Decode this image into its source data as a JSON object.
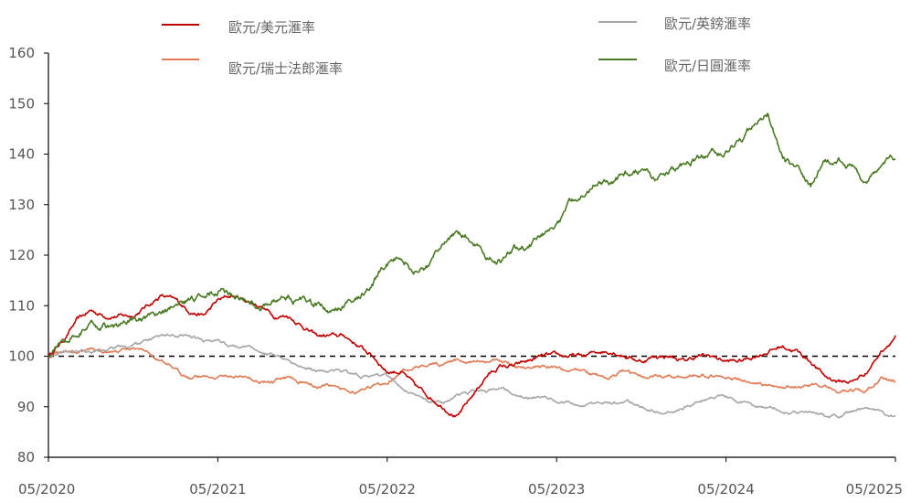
{
  "chart_data": {
    "type": "line",
    "title": "",
    "xlabel": "",
    "ylabel": "",
    "ylim": [
      80,
      160
    ],
    "yticks": [
      80,
      90,
      100,
      110,
      120,
      130,
      140,
      150,
      160
    ],
    "xticks": [
      "05/2020",
      "05/2021",
      "05/2022",
      "05/2023",
      "05/2024",
      "05/2025"
    ],
    "x_start": "05/2020",
    "x_end": "05/2025",
    "reference_line": {
      "value": 100,
      "style": "dashed",
      "color": "#000000"
    },
    "grid": false,
    "legend_position": "top",
    "x": [
      "2020-05",
      "2020-06",
      "2020-07",
      "2020-08",
      "2020-09",
      "2020-10",
      "2020-11",
      "2020-12",
      "2021-01",
      "2021-02",
      "2021-03",
      "2021-04",
      "2021-05",
      "2021-06",
      "2021-07",
      "2021-08",
      "2021-09",
      "2021-10",
      "2021-11",
      "2021-12",
      "2022-01",
      "2022-02",
      "2022-03",
      "2022-04",
      "2022-05",
      "2022-06",
      "2022-07",
      "2022-08",
      "2022-09",
      "2022-10",
      "2022-11",
      "2022-12",
      "2023-01",
      "2023-02",
      "2023-03",
      "2023-04",
      "2023-05",
      "2023-06",
      "2023-07",
      "2023-08",
      "2023-09",
      "2023-10",
      "2023-11",
      "2023-12",
      "2024-01",
      "2024-02",
      "2024-03",
      "2024-04",
      "2024-05",
      "2024-06",
      "2024-07",
      "2024-08",
      "2024-09",
      "2024-10",
      "2024-11",
      "2024-12",
      "2025-01",
      "2025-02",
      "2025-03",
      "2025-04",
      "2025-05"
    ],
    "series": [
      {
        "name": "歐元/美元滙率",
        "color": "#c00000",
        "values": [
          100,
          103,
          107,
          109,
          108,
          108,
          108,
          110,
          112,
          111,
          109,
          108,
          111,
          112,
          111,
          110,
          108,
          108,
          106,
          104,
          104,
          104,
          102,
          100,
          97,
          97,
          94,
          92,
          90,
          88,
          92,
          96,
          98,
          98,
          99,
          100,
          100,
          100,
          100,
          101,
          101,
          100,
          99,
          100,
          100,
          99,
          100,
          100,
          99,
          99,
          100,
          101,
          102,
          101,
          99,
          96,
          95,
          95,
          97,
          101,
          104
        ]
      },
      {
        "name": "歐元/瑞士法郎滙率",
        "color": "#e07b54",
        "values": [
          100,
          101,
          101,
          102,
          101,
          101,
          101,
          101,
          99,
          97,
          96,
          96,
          96,
          96,
          96,
          95,
          95,
          96,
          95,
          94,
          94,
          93,
          93,
          94,
          95,
          97,
          98,
          99,
          98,
          99,
          99,
          99,
          99,
          98,
          98,
          98,
          98,
          97,
          97,
          96,
          96,
          97,
          96,
          96,
          96,
          96,
          96,
          96,
          96,
          95,
          95,
          94,
          94,
          94,
          94,
          94,
          93,
          93,
          93,
          96,
          95
        ]
      },
      {
        "name": "歐元/英鎊滙率",
        "color": "#a6a6a6",
        "values": [
          100,
          101,
          101,
          101,
          101,
          102,
          102,
          103,
          104,
          104,
          104,
          103,
          103,
          102,
          102,
          101,
          100,
          99,
          98,
          97,
          97,
          97,
          96,
          96,
          96,
          94,
          92,
          91,
          91,
          92,
          93,
          93,
          94,
          93,
          92,
          92,
          91,
          91,
          90,
          91,
          91,
          91,
          90,
          89,
          89,
          90,
          91,
          92,
          92,
          91,
          90,
          90,
          89,
          89,
          89,
          88,
          88,
          89,
          90,
          89,
          88
        ]
      },
      {
        "name": "歐元/日圓滙率",
        "color": "#4a7a23",
        "values": [
          100,
          103,
          105,
          106,
          106,
          106,
          107,
          107,
          108,
          110,
          111,
          112,
          113,
          112,
          111,
          110,
          111,
          112,
          111,
          110,
          109,
          110,
          112,
          115,
          118,
          120,
          117,
          118,
          123,
          124,
          123,
          120,
          119,
          121,
          122,
          124,
          126,
          130,
          133,
          135,
          135,
          136,
          137,
          135,
          137,
          138,
          139,
          140,
          141,
          142,
          146,
          148,
          139,
          137,
          134,
          138,
          139,
          137,
          134,
          137,
          139
        ]
      }
    ]
  }
}
